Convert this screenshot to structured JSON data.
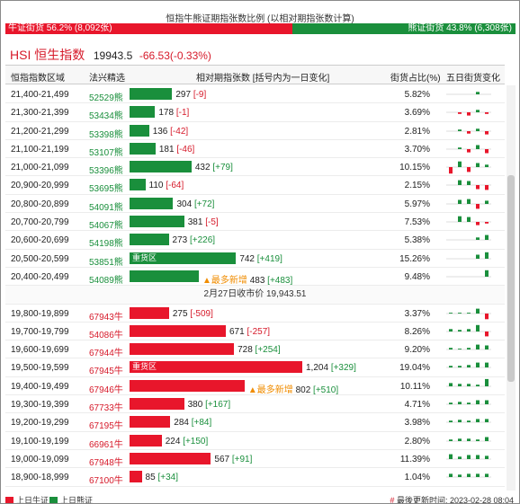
{
  "title": "恒指牛熊证期指张数比例 (以相对期指张数计算)",
  "ratio": {
    "bull_label": "牛证街货 56.2% (8,092张)",
    "bull_pct": 56.2,
    "bear_label": "熊证街货 43.8% (6,308张)",
    "bear_pct": 43.8
  },
  "index": {
    "name": "HSI 恒生指数",
    "price": "19943.5",
    "change": "-66.53(-0.33%)"
  },
  "headers": {
    "range": "恒指指数区域",
    "code": "法兴精选",
    "relative": "相对期指张数 [括号内为一日变化]",
    "share": "街货占比(%)",
    "five_day": "五日街货变化"
  },
  "bear_rows": [
    {
      "range": "21,400-21,499",
      "code": "52529熊",
      "value": "297",
      "delta": "[-9]",
      "pct": "5.82%",
      "qty": 297,
      "spark": [
        0,
        0,
        0,
        0.3,
        0
      ]
    },
    {
      "range": "21,300-21,399",
      "code": "53434熊",
      "value": "178",
      "delta": "[-1]",
      "pct": "3.69%",
      "qty": 178,
      "spark": [
        0,
        -0.2,
        -0.4,
        0.3,
        -0.2
      ]
    },
    {
      "range": "21,200-21,299",
      "code": "53398熊",
      "value": "136",
      "delta": "[-42]",
      "pct": "2.81%",
      "qty": 136,
      "spark": [
        0,
        0.2,
        -0.3,
        0.3,
        -0.4
      ]
    },
    {
      "range": "21,100-21,199",
      "code": "53107熊",
      "value": "181",
      "delta": "[-46]",
      "pct": "3.70%",
      "qty": 181,
      "spark": [
        0,
        0.2,
        -0.4,
        0.5,
        -0.5
      ]
    },
    {
      "range": "21,000-21,099",
      "code": "53396熊",
      "value": "432",
      "delta": "[+79]",
      "pct": "10.15%",
      "qty": 432,
      "spark": [
        -0.8,
        0.7,
        -0.6,
        0.5,
        0.3
      ]
    },
    {
      "range": "20,900-20,999",
      "code": "53695熊",
      "value": "110",
      "delta": "[-64]",
      "pct": "2.15%",
      "qty": 110,
      "spark": [
        0,
        0.6,
        0.5,
        -0.5,
        -0.6
      ]
    },
    {
      "range": "20,800-20,899",
      "code": "54091熊",
      "value": "304",
      "delta": "[+72]",
      "pct": "5.97%",
      "qty": 304,
      "spark": [
        0,
        0.5,
        0.6,
        -0.6,
        0.4
      ]
    },
    {
      "range": "20,700-20,799",
      "code": "54067熊",
      "value": "381",
      "delta": "[-5]",
      "pct": "7.53%",
      "qty": 381,
      "spark": [
        0,
        0.7,
        0.6,
        -0.4,
        -0.2
      ]
    },
    {
      "range": "20,600-20,699",
      "code": "54198熊",
      "value": "273",
      "delta": "[+226]",
      "pct": "5.38%",
      "qty": 273,
      "spark": [
        0,
        0,
        0,
        0.3,
        0.6
      ]
    },
    {
      "range": "20,500-20,599",
      "code": "53851熊",
      "value": "742",
      "delta": "[+419]",
      "pct": "15.26%",
      "qty": 742,
      "tag": "重货区",
      "spark": [
        0,
        0,
        0,
        0.5,
        0.8
      ]
    },
    {
      "range": "20,400-20,499",
      "code": "54089熊",
      "value": "483",
      "delta": "[+483]",
      "pct": "9.48%",
      "qty": 483,
      "star": "▲最多新增",
      "spark": [
        0,
        0,
        0,
        0,
        0.8
      ]
    }
  ],
  "separator": "2月27日收市价 19,943.51",
  "bull_rows": [
    {
      "range": "19,800-19,899",
      "code": "67943牛",
      "value": "275",
      "delta": "[-509]",
      "pct": "3.37%",
      "qty": 275,
      "spark": [
        0.1,
        0.1,
        0.1,
        0.6,
        -0.7
      ]
    },
    {
      "range": "19,700-19,799",
      "code": "54086牛",
      "value": "671",
      "delta": "[-257]",
      "pct": "8.26%",
      "qty": 671,
      "spark": [
        0.3,
        0.2,
        0.3,
        0.8,
        -0.6
      ]
    },
    {
      "range": "19,600-19,699",
      "code": "67944牛",
      "value": "728",
      "delta": "[+254]",
      "pct": "9.20%",
      "qty": 728,
      "spark": [
        0.2,
        0.1,
        0.2,
        0.6,
        0.5
      ]
    },
    {
      "range": "19,500-19,599",
      "code": "67945牛",
      "value": "1,204",
      "delta": "[+329]",
      "pct": "19.04%",
      "qty": 1204,
      "tag": "重货区",
      "spark": [
        0.2,
        0.2,
        0.3,
        0.6,
        0.6
      ]
    },
    {
      "range": "19,400-19,499",
      "code": "67946牛",
      "value": "802",
      "delta": "[+510]",
      "pct": "10.11%",
      "qty": 802,
      "star": "▲最多新增",
      "spark": [
        0.4,
        0.3,
        0.3,
        0.2,
        0.9
      ]
    },
    {
      "range": "19,300-19,399",
      "code": "67733牛",
      "value": "380",
      "delta": "[+167]",
      "pct": "4.71%",
      "qty": 380,
      "spark": [
        0.2,
        0.3,
        0.2,
        0.5,
        0.5
      ]
    },
    {
      "range": "19,200-19,299",
      "code": "67195牛",
      "value": "284",
      "delta": "[+84]",
      "pct": "3.98%",
      "qty": 284,
      "spark": [
        0.2,
        0.3,
        0.2,
        0.4,
        0.4
      ]
    },
    {
      "range": "19,100-19,199",
      "code": "66961牛",
      "value": "224",
      "delta": "[+150]",
      "pct": "2.80%",
      "qty": 224,
      "spark": [
        0.2,
        0.3,
        0.3,
        0.2,
        0.5
      ]
    },
    {
      "range": "19,000-19,099",
      "code": "67948牛",
      "value": "567",
      "delta": "[+91]",
      "pct": "11.39%",
      "qty": 567,
      "spark": [
        0.6,
        0.3,
        0.5,
        0.5,
        0.4
      ]
    },
    {
      "range": "18,900-18,999",
      "code": "67100牛",
      "value": "85",
      "delta": "[+34]",
      "pct": "1.04%",
      "qty": 85,
      "spark": [
        0.4,
        0.3,
        0.4,
        0.4,
        0.4
      ]
    }
  ],
  "legend": {
    "prev_bull": "上日牛证",
    "prev_bear": "上日熊证"
  },
  "updated": {
    "hash": "#",
    "text": "最後更新时间: 2023-02-28 08:04"
  },
  "colors": {
    "bull": "#e8162b",
    "bear": "#1a8f3c"
  }
}
